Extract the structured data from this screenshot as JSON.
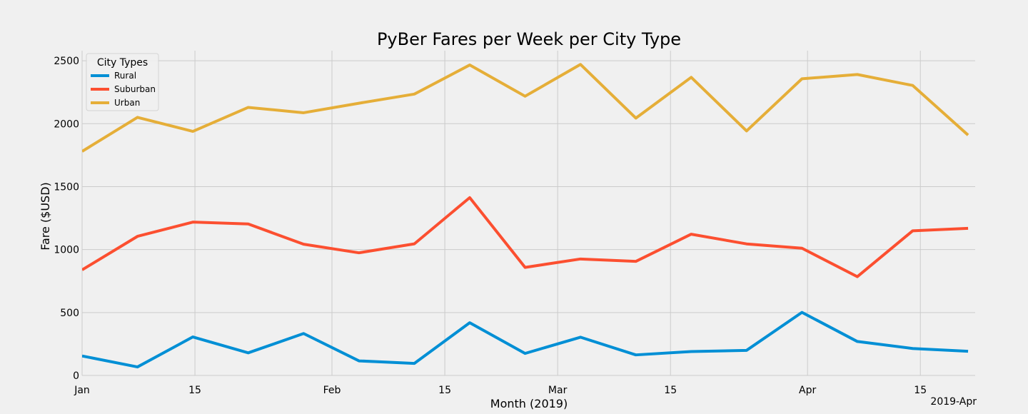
{
  "chart_data": {
    "type": "line",
    "title": "PyBer Fares per Week per City Type",
    "xlabel": "Month (2019)",
    "ylabel": "Fare ($USD)",
    "x_offset_label": "2019-Apr",
    "x_unit": "days since 2019-01-01",
    "xlim": [
      0,
      110.8
    ],
    "ylim": [
      0,
      2580
    ],
    "grid": true,
    "x_ticks": [
      {
        "value": 0,
        "label": "Jan"
      },
      {
        "value": 14,
        "label": "15"
      },
      {
        "value": 31,
        "label": "Feb"
      },
      {
        "value": 45,
        "label": "15"
      },
      {
        "value": 59,
        "label": "Mar"
      },
      {
        "value": 73,
        "label": "15"
      },
      {
        "value": 90,
        "label": "Apr"
      },
      {
        "value": 104,
        "label": "15"
      }
    ],
    "y_ticks": [
      {
        "value": 0,
        "label": "0"
      },
      {
        "value": 500,
        "label": "500"
      },
      {
        "value": 1000,
        "label": "1000"
      },
      {
        "value": 1500,
        "label": "1500"
      },
      {
        "value": 2000,
        "label": "2000"
      },
      {
        "value": 2500,
        "label": "2500"
      }
    ],
    "x": [
      0,
      6.87,
      13.74,
      20.61,
      27.48,
      34.35,
      41.22,
      48.09,
      54.96,
      61.83,
      68.7,
      75.57,
      82.44,
      89.31,
      96.18,
      103.05,
      109.92
    ],
    "legend": {
      "title": "City Types",
      "placement": "top-left"
    },
    "series": [
      {
        "name": "Rural",
        "color": "#008fd5",
        "values": [
          155,
          67.65,
          306.0,
          179.69,
          333.08,
          115.8,
          95.82,
          419.06,
          175.14,
          303.94,
          163.39,
          189.76,
          199.42,
          501.24,
          269.79,
          214.14,
          191.85
        ]
      },
      {
        "name": "Suburban",
        "color": "#fc4f30",
        "values": [
          839,
          1105.13,
          1218.2,
          1203.28,
          1042.79,
          974.34,
          1045.5,
          1412.74,
          858.46,
          925.27,
          906.2,
          1122.2,
          1045.06,
          1010.73,
          784.82,
          1149.27,
          1169.04
        ]
      },
      {
        "name": "Urban",
        "color": "#e5ae38",
        "values": [
          1780,
          2050.43,
          1939.02,
          2129.51,
          2086.94,
          2162.64,
          2235.07,
          2466.29,
          2218.2,
          2470.93,
          2044.42,
          2368.37,
          1942.37,
          2356.7,
          2390.72,
          2303.8,
          1909.51
        ]
      }
    ]
  }
}
